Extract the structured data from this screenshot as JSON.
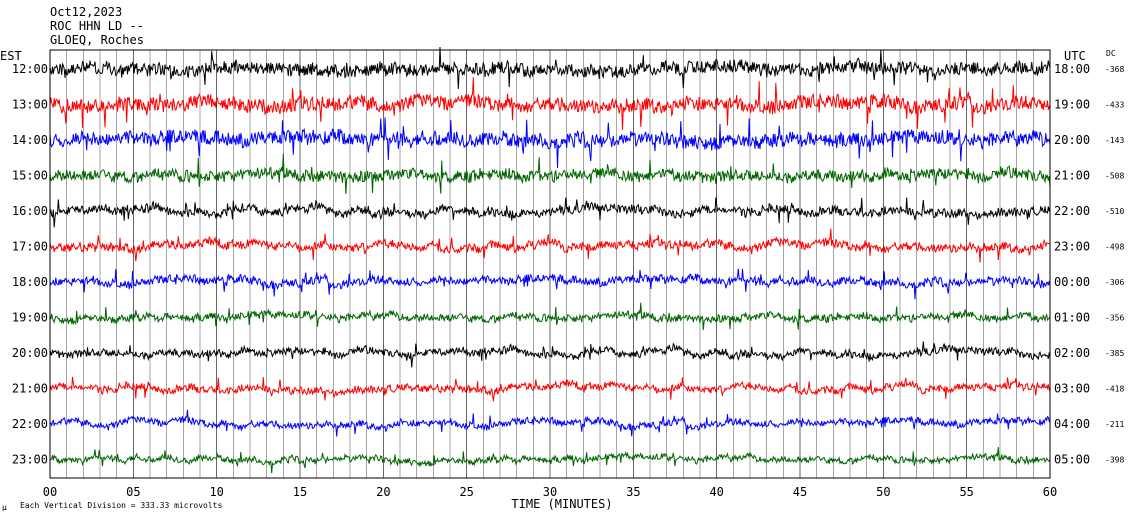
{
  "header": {
    "date": "Oct12,2023",
    "station": "ROC HHN LD --",
    "site": "GLOEQ, Roches"
  },
  "left_axis_title": "EST",
  "right_axis_title": "UTC",
  "dc_title": "DC",
  "footer": {
    "prefix": "μ",
    "note": "Each Vertical Division = 333.33 microvolts"
  },
  "chart_data": {
    "type": "line",
    "title": "",
    "xlabel": "TIME (MINUTES)",
    "xlim": [
      0,
      60
    ],
    "x_ticks": [
      "00",
      "05",
      "10",
      "15",
      "20",
      "25",
      "30",
      "35",
      "40",
      "45",
      "50",
      "55",
      "60"
    ],
    "trace_colors": [
      "#000000",
      "#ff0000",
      "#0000ff",
      "#006400"
    ],
    "rows": [
      {
        "est": "12:00",
        "utc": "18:00",
        "dc": "-368",
        "color": "#000000",
        "noise": 0.9
      },
      {
        "est": "13:00",
        "utc": "19:00",
        "dc": "-433",
        "color": "#ff0000",
        "noise": 1.0
      },
      {
        "est": "14:00",
        "utc": "20:00",
        "dc": "-143",
        "color": "#0000ff",
        "noise": 1.0
      },
      {
        "est": "15:00",
        "utc": "21:00",
        "dc": "-508",
        "color": "#006400",
        "noise": 0.8
      },
      {
        "est": "16:00",
        "utc": "22:00",
        "dc": "-510",
        "color": "#000000",
        "noise": 0.6
      },
      {
        "est": "17:00",
        "utc": "23:00",
        "dc": "-498",
        "color": "#ff0000",
        "noise": 0.6
      },
      {
        "est": "18:00",
        "utc": "00:00",
        "dc": "-306",
        "color": "#0000ff",
        "noise": 0.55
      },
      {
        "est": "19:00",
        "utc": "01:00",
        "dc": "-356",
        "color": "#006400",
        "noise": 0.5
      },
      {
        "est": "20:00",
        "utc": "02:00",
        "dc": "-385",
        "color": "#000000",
        "noise": 0.5
      },
      {
        "est": "21:00",
        "utc": "03:00",
        "dc": "-418",
        "color": "#ff0000",
        "noise": 0.5
      },
      {
        "est": "22:00",
        "utc": "04:00",
        "dc": "-211",
        "color": "#0000ff",
        "noise": 0.45
      },
      {
        "est": "23:00",
        "utc": "05:00",
        "dc": "-398",
        "color": "#006400",
        "noise": 0.4
      }
    ]
  }
}
